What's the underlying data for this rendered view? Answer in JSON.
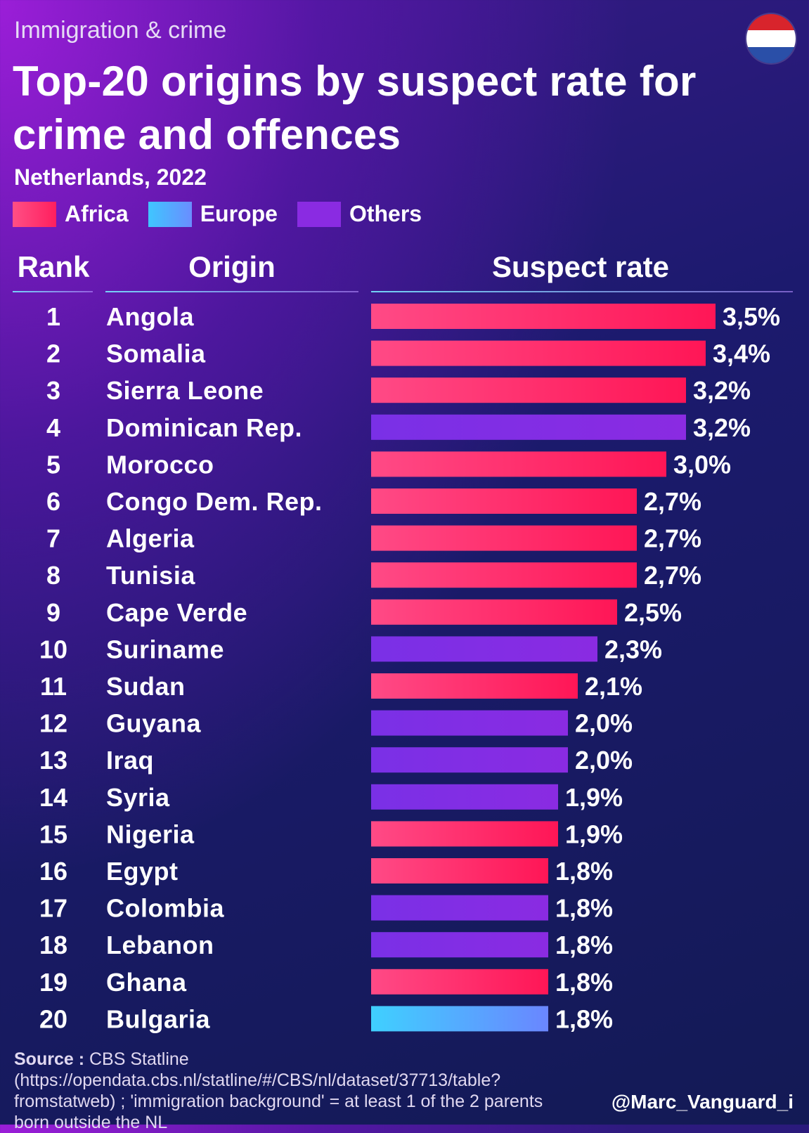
{
  "header": {
    "kicker": "Immigration & crime",
    "title": "Top-20 origins by suspect rate for crime and offences",
    "subtitle": "Netherlands, 2022",
    "flag_icon": "netherlands-flag-icon"
  },
  "legend": [
    {
      "label": "Africa",
      "color_from": "#ff2f6e",
      "color_to": "#ff2f6e"
    },
    {
      "label": "Europe",
      "color_from": "#3fc6ff",
      "color_to": "#6a8dff"
    },
    {
      "label": "Others",
      "color_from": "#8a2be2",
      "color_to": "#8a2be2"
    }
  ],
  "columns": {
    "rank": "Rank",
    "origin": "Origin",
    "rate": "Suspect rate"
  },
  "colors": {
    "Africa": "#ff2a6a",
    "Europe": "#5aaaff",
    "Others": "#7a2fe0"
  },
  "chart_data": {
    "type": "bar",
    "orientation": "horizontal",
    "rows": [
      {
        "rank": "1",
        "origin": "Angola",
        "value": 3.5,
        "label": "3,5%",
        "region": "Africa"
      },
      {
        "rank": "2",
        "origin": "Somalia",
        "value": 3.4,
        "label": "3,4%",
        "region": "Africa"
      },
      {
        "rank": "3",
        "origin": "Sierra Leone",
        "value": 3.2,
        "label": "3,2%",
        "region": "Africa"
      },
      {
        "rank": "4",
        "origin": "Dominican Rep.",
        "value": 3.2,
        "label": "3,2%",
        "region": "Others"
      },
      {
        "rank": "5",
        "origin": "Morocco",
        "value": 3.0,
        "label": "3,0%",
        "region": "Africa"
      },
      {
        "rank": "6",
        "origin": "Congo Dem. Rep.",
        "value": 2.7,
        "label": "2,7%",
        "region": "Africa"
      },
      {
        "rank": "7",
        "origin": "Algeria",
        "value": 2.7,
        "label": "2,7%",
        "region": "Africa"
      },
      {
        "rank": "8",
        "origin": "Tunisia",
        "value": 2.7,
        "label": "2,7%",
        "region": "Africa"
      },
      {
        "rank": "9",
        "origin": "Cape Verde",
        "value": 2.5,
        "label": "2,5%",
        "region": "Africa"
      },
      {
        "rank": "10",
        "origin": "Suriname",
        "value": 2.3,
        "label": "2,3%",
        "region": "Others"
      },
      {
        "rank": "11",
        "origin": "Sudan",
        "value": 2.1,
        "label": "2,1%",
        "region": "Africa"
      },
      {
        "rank": "12",
        "origin": "Guyana",
        "value": 2.0,
        "label": "2,0%",
        "region": "Others"
      },
      {
        "rank": "13",
        "origin": "Iraq",
        "value": 2.0,
        "label": "2,0%",
        "region": "Others"
      },
      {
        "rank": "14",
        "origin": "Syria",
        "value": 1.9,
        "label": "1,9%",
        "region": "Others"
      },
      {
        "rank": "15",
        "origin": "Nigeria",
        "value": 1.9,
        "label": "1,9%",
        "region": "Africa"
      },
      {
        "rank": "16",
        "origin": "Egypt",
        "value": 1.8,
        "label": "1,8%",
        "region": "Africa"
      },
      {
        "rank": "17",
        "origin": "Colombia",
        "value": 1.8,
        "label": "1,8%",
        "region": "Others"
      },
      {
        "rank": "18",
        "origin": "Lebanon",
        "value": 1.8,
        "label": "1,8%",
        "region": "Others"
      },
      {
        "rank": "19",
        "origin": "Ghana",
        "value": 1.8,
        "label": "1,8%",
        "region": "Africa"
      },
      {
        "rank": "20",
        "origin": "Bulgaria",
        "value": 1.8,
        "label": "1,8%",
        "region": "Europe"
      }
    ],
    "xlim": [
      0,
      3.5
    ],
    "grid": false,
    "legend_position": "top-left"
  },
  "footer": {
    "source_label": "Source :",
    "source_text": " CBS Statline (https://opendata.cbs.nl/statline/#/CBS/nl/dataset/37713/table?fromstatweb) ; 'immigration background' = at least 1 of the 2 parents born outside the NL",
    "handle": "@Marc_Vanguard_i"
  }
}
